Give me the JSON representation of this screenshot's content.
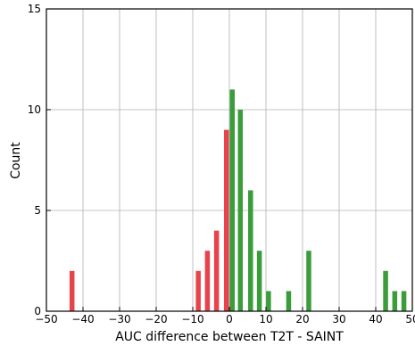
{
  "chart_data": {
    "type": "bar",
    "title": "",
    "xlabel": "AUC difference between T2T - SAINT",
    "ylabel": "Count",
    "xlim": [
      -50,
      50
    ],
    "ylim": [
      0,
      15
    ],
    "x_ticks": [
      -50,
      -40,
      -30,
      -20,
      -10,
      0,
      10,
      20,
      30,
      40,
      50
    ],
    "y_ticks": [
      0,
      5,
      10,
      15
    ],
    "grid": true,
    "colors": {
      "negative": "#e8434a",
      "positive": "#3a9c3a",
      "grid": "#b0b0b0"
    },
    "series": [
      {
        "x": [
          -43,
          -8.5,
          -6,
          -3.5,
          -0.8
        ],
        "values": [
          2,
          2,
          3,
          4,
          9
        ]
      },
      {
        "x": [
          0.8,
          3.0,
          5.8,
          8.2,
          10.7,
          16.2,
          21.7,
          42.7,
          45.2,
          47.7
        ],
        "values": [
          11,
          10,
          6,
          3,
          1,
          1,
          3,
          2,
          1,
          1
        ]
      }
    ]
  }
}
